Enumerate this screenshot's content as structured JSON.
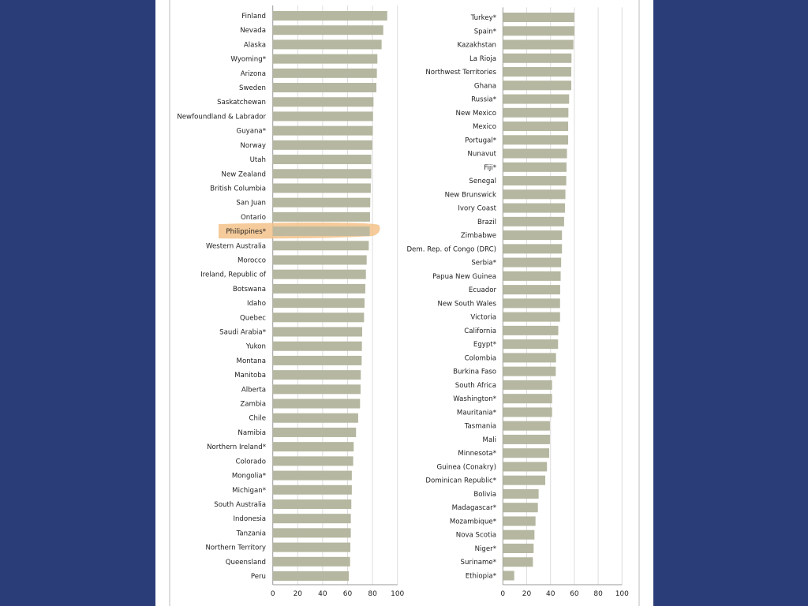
{
  "colors": {
    "background": "#2a3d78",
    "bar": "#b5b7a0",
    "highlight": "#f3c28a",
    "highlight_text": "#b07a45"
  },
  "chart_data": [
    {
      "type": "bar",
      "orientation": "horizontal",
      "xlim": [
        0,
        100
      ],
      "xticks": [
        "0",
        "20",
        "40",
        "60",
        "80",
        "100"
      ],
      "grid": true,
      "highlighted": "Philippines*",
      "categories": [
        "Finland",
        "Nevada",
        "Alaska",
        "Wyoming*",
        "Arizona",
        "Sweden",
        "Saskatchewan",
        "Newfoundland & Labrador",
        "Guyana*",
        "Norway",
        "Utah",
        "New Zealand",
        "British Columbia",
        "San Juan",
        "Ontario",
        "Philippines*",
        "Western Australia",
        "Morocco",
        "Ireland, Republic of",
        "Botswana",
        "Idaho",
        "Quebec",
        "Saudi Arabia*",
        "Yukon",
        "Montana",
        "Manitoba",
        "Alberta",
        "Zambia",
        "Chile",
        "Namibia",
        "Northern Ireland*",
        "Colorado",
        "Mongolia*",
        "Michigan*",
        "South Australia",
        "Indonesia",
        "Tanzania",
        "Northern Territory",
        "Queensland",
        "Peru"
      ],
      "values": [
        91.8,
        88.6,
        87.3,
        83.9,
        83.5,
        83.1,
        80.8,
        80.4,
        80.2,
        79.8,
        79.0,
        79.0,
        78.6,
        78.2,
        78.0,
        77.8,
        77.0,
        75.3,
        74.7,
        74.2,
        73.6,
        73.2,
        71.7,
        71.5,
        71.3,
        70.6,
        70.4,
        70.0,
        68.5,
        66.8,
        64.9,
        64.5,
        63.4,
        63.4,
        63.0,
        62.6,
        62.6,
        62.2,
        62.0,
        61.0
      ]
    },
    {
      "type": "bar",
      "orientation": "horizontal",
      "xlim": [
        0,
        100
      ],
      "xticks": [
        "0",
        "20",
        "40",
        "60",
        "80",
        "100"
      ],
      "grid": true,
      "categories": [
        "Turkey*",
        "Spain*",
        "Kazakhstan",
        "La Rioja",
        "Northwest Territories",
        "Ghana",
        "Russia*",
        "New Mexico",
        "Mexico",
        "Portugal*",
        "Nunavut",
        "Fiji*",
        "Senegal",
        "New Brunswick",
        "Ivory Coast",
        "Brazil",
        "Zimbabwe",
        "Dem. Rep. of Congo (DRC)",
        "Serbia*",
        "Papua New Guinea",
        "Ecuador",
        "New South Wales",
        "Victoria",
        "California",
        "Egypt*",
        "Colombia",
        "Burkina Faso",
        "South Africa",
        "Washington*",
        "Mauritania*",
        "Tasmania",
        "Mali",
        "Minnesota*",
        "Guinea (Conakry)",
        "Dominican Republic*",
        "Bolivia",
        "Madagascar*",
        "Mozambique*",
        "Nova Scotia",
        "Niger*",
        "Suriname*",
        "Ethiopia*"
      ],
      "values": [
        60.0,
        60.1,
        59.2,
        57.6,
        57.4,
        57.4,
        55.6,
        55.0,
        54.8,
        54.8,
        53.8,
        53.4,
        53.2,
        52.5,
        52.1,
        51.4,
        49.6,
        49.6,
        48.9,
        48.5,
        48.1,
        48.0,
        48.0,
        46.5,
        46.3,
        44.6,
        44.4,
        41.3,
        41.3,
        41.3,
        39.5,
        39.5,
        38.9,
        37.0,
        35.6,
        30.0,
        29.4,
        27.4,
        26.5,
        25.8,
        25.2,
        9.5
      ]
    }
  ]
}
